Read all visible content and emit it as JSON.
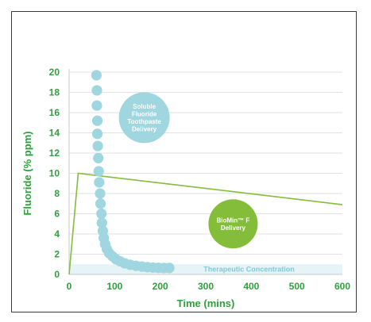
{
  "chart_data": {
    "type": "line",
    "xlabel": "Time (mins)",
    "ylabel": "Fluoride (% ppm)",
    "xlim": [
      0,
      600
    ],
    "ylim": [
      0,
      20
    ],
    "x_ticks": [
      "0",
      "100",
      "200",
      "300",
      "400",
      "500",
      "600"
    ],
    "y_ticks": [
      "0",
      "2",
      "4",
      "6",
      "8",
      "10",
      "12",
      "14",
      "16",
      "18",
      "20"
    ],
    "grid": true,
    "colors": {
      "axis_text": "#2e9f3c",
      "soluble": "#9fd6df",
      "biomin": "#84bd3a",
      "band": "#e6f4f7",
      "grid": "#d9d9d9"
    },
    "band": {
      "label": "Therapeutic Concentration",
      "y_range": [
        0,
        1
      ]
    },
    "series": [
      {
        "key": "soluble",
        "name_lines": [
          "Soluble",
          "Fluoride",
          "Toothpaste",
          "Delivery"
        ],
        "label_position": {
          "x": 165,
          "y": 15.5
        },
        "points": [
          {
            "x": 60,
            "y": 19.7
          },
          {
            "x": 61,
            "y": 18.2
          },
          {
            "x": 61,
            "y": 16.7
          },
          {
            "x": 62,
            "y": 15.2
          },
          {
            "x": 62,
            "y": 13.9
          },
          {
            "x": 63,
            "y": 12.7
          },
          {
            "x": 64,
            "y": 11.5
          },
          {
            "x": 65,
            "y": 10.2
          },
          {
            "x": 66,
            "y": 9.1
          },
          {
            "x": 68,
            "y": 8.0
          },
          {
            "x": 69,
            "y": 7.0
          },
          {
            "x": 71,
            "y": 6.0
          },
          {
            "x": 72,
            "y": 5.1
          },
          {
            "x": 74,
            "y": 4.3
          },
          {
            "x": 76,
            "y": 3.6
          },
          {
            "x": 79,
            "y": 3.0
          },
          {
            "x": 83,
            "y": 2.5
          },
          {
            "x": 88,
            "y": 2.1
          },
          {
            "x": 95,
            "y": 1.8
          },
          {
            "x": 103,
            "y": 1.5
          },
          {
            "x": 112,
            "y": 1.3
          },
          {
            "x": 122,
            "y": 1.1
          },
          {
            "x": 134,
            "y": 0.95
          },
          {
            "x": 147,
            "y": 0.85
          },
          {
            "x": 160,
            "y": 0.78
          },
          {
            "x": 172,
            "y": 0.72
          },
          {
            "x": 184,
            "y": 0.68
          },
          {
            "x": 196,
            "y": 0.65
          },
          {
            "x": 208,
            "y": 0.64
          },
          {
            "x": 220,
            "y": 0.64
          }
        ]
      },
      {
        "key": "biomin",
        "name_lines": [
          "BioMin™ F",
          "Delivery"
        ],
        "label_position": {
          "x": 360,
          "y": 5
        },
        "points": [
          {
            "x": 0,
            "y": 0
          },
          {
            "x": 20,
            "y": 10
          },
          {
            "x": 600,
            "y": 6.9
          }
        ]
      }
    ]
  }
}
